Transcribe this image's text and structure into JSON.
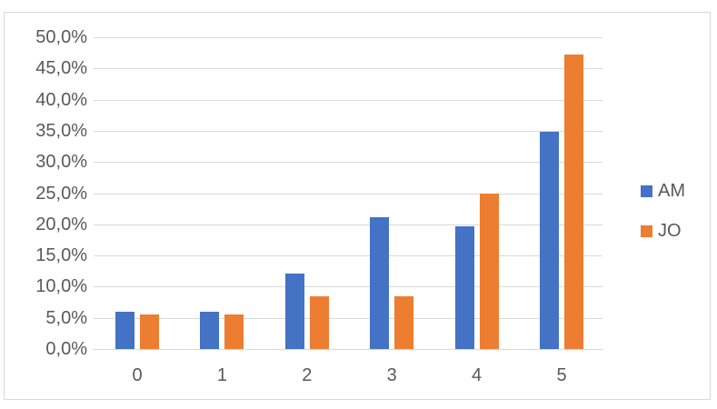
{
  "chart_data": {
    "type": "bar",
    "title": "",
    "xlabel": "",
    "ylabel": "",
    "categories": [
      "0",
      "1",
      "2",
      "3",
      "4",
      "5"
    ],
    "series": [
      {
        "name": "AM",
        "color": "#4472C4",
        "values": [
          6.0,
          6.0,
          12.1,
          21.2,
          19.7,
          34.8
        ]
      },
      {
        "name": "JO",
        "color": "#ED7D31",
        "values": [
          5.5,
          5.5,
          8.4,
          8.4,
          25.0,
          47.3
        ]
      }
    ],
    "ylim": [
      0,
      50
    ],
    "ytick_step": 5,
    "ytick_labels": [
      "0,0%",
      "5,0%",
      "10,0%",
      "15,0%",
      "20,0%",
      "25,0%",
      "30,0%",
      "35,0%",
      "40,0%",
      "45,0%",
      "50,0%"
    ],
    "decimal_separator": ",",
    "grid": true,
    "legend_position": "right",
    "colors": {
      "axis_text": "#595959",
      "gridline": "#D9D9D9",
      "chart_border": "#D9D9D9",
      "background": "#FFFFFF",
      "series_am": "#4472C4",
      "series_jo": "#ED7D31"
    }
  }
}
